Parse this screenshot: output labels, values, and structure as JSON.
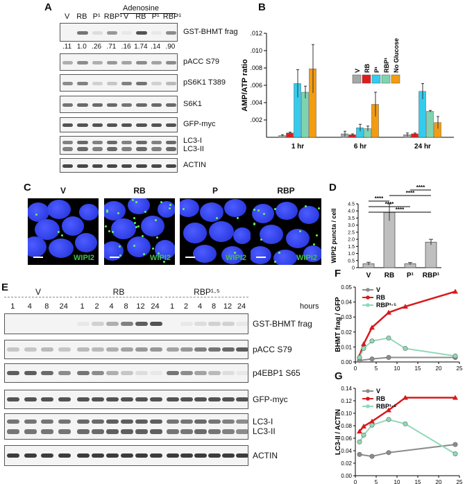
{
  "panels": {
    "A": "A",
    "B": "B",
    "C": "C",
    "D": "D",
    "E": "E",
    "F": "F",
    "G": "G"
  },
  "panelA": {
    "treatment_label": "Adenosine",
    "lanes": [
      "V",
      "RB",
      "P¹",
      "RBP¹",
      "V",
      "RB",
      "P¹",
      "RBP¹"
    ],
    "quant": [
      ".11",
      "1.0",
      ".26",
      ".71",
      ".16",
      "1.74",
      ".14",
      ".90"
    ],
    "blots": [
      {
        "label": "GST-BHMT frag",
        "intensity": [
          0.05,
          0.6,
          0.15,
          0.45,
          0.1,
          0.75,
          0.1,
          0.5
        ]
      },
      {
        "label": "pACC S79",
        "intensity": [
          0.35,
          0.5,
          0.35,
          0.45,
          0.4,
          0.5,
          0.4,
          0.5
        ]
      },
      {
        "label": "pS6K1 T389",
        "intensity": [
          0.5,
          0.55,
          0.2,
          0.25,
          0.55,
          0.6,
          0.2,
          0.3
        ]
      },
      {
        "label": "S6K1",
        "intensity": [
          0.6,
          0.65,
          0.65,
          0.65,
          0.6,
          0.65,
          0.65,
          0.65
        ]
      },
      {
        "label": "GFP-myc",
        "intensity": [
          0.75,
          0.75,
          0.75,
          0.75,
          0.75,
          0.75,
          0.75,
          0.75
        ]
      },
      {
        "label": "LC3-I\nLC3-II",
        "intensity": [
          0.55,
          0.65,
          0.55,
          0.65,
          0.55,
          0.65,
          0.55,
          0.65
        ]
      },
      {
        "label": "ACTIN",
        "intensity": [
          0.8,
          0.8,
          0.8,
          0.8,
          0.8,
          0.8,
          0.8,
          0.8
        ]
      }
    ]
  },
  "panelC": {
    "titles": [
      "V",
      "RB",
      "P",
      "RBP"
    ],
    "stain": "WIPI2"
  },
  "panelE": {
    "groups": [
      "V",
      "RB",
      "RBP¹·⁵"
    ],
    "timepoints": [
      "1",
      "4",
      "8",
      "24",
      "1",
      "2",
      "4",
      "8",
      "12",
      "24",
      "1",
      "2",
      "4",
      "8",
      "12",
      "24"
    ],
    "units": "hours",
    "blots": [
      {
        "label": "GST-BHMT frag"
      },
      {
        "label": "pACC S79"
      },
      {
        "label": "p4EBP1 S65"
      },
      {
        "label": "GFP-myc"
      },
      {
        "label": "LC3-I\nLC3-II"
      },
      {
        "label": "ACTIN"
      }
    ]
  },
  "chart_data": [
    {
      "panel": "B",
      "type": "bar",
      "ylabel": "AMP/ATP ratio",
      "categories": [
        "1 hr",
        "6 hr",
        "24 hr"
      ],
      "ylim": [
        0,
        0.012
      ],
      "yticks": [
        ".002",
        ".004",
        ".006",
        ".008",
        ".010",
        ".012"
      ],
      "series": [
        {
          "name": "V",
          "color": "#a6a6a6",
          "values": [
            0.0002,
            0.0004,
            0.0003
          ],
          "err": [
            0.0001,
            0.0003,
            0.0002
          ]
        },
        {
          "name": "RB",
          "color": "#e31a1c",
          "values": [
            0.0005,
            0.0003,
            0.0004
          ],
          "err": [
            0.0001,
            0.0001,
            0.0001
          ]
        },
        {
          "name": "P¹",
          "color": "#33ccee",
          "values": [
            0.0062,
            0.0011,
            0.0053
          ],
          "err": [
            0.0016,
            0.0004,
            0.0009
          ]
        },
        {
          "name": "RBP¹",
          "color": "#7fd4b0",
          "values": [
            0.0052,
            0.001,
            0.003
          ],
          "err": [
            0.0007,
            0.0003,
            0.0001
          ]
        },
        {
          "name": "No Glucose",
          "color": "#f39c12",
          "values": [
            0.0079,
            0.0038,
            0.0017
          ],
          "err": [
            0.0028,
            0.0014,
            0.0007
          ]
        }
      ]
    },
    {
      "panel": "D",
      "type": "bar",
      "ylabel": "WIPI2 puncta / cell",
      "categories": [
        "V",
        "RB",
        "P¹",
        "RBP¹"
      ],
      "ylim": [
        0,
        4.5
      ],
      "yticks": [
        "0",
        "0.5",
        "1.0",
        "1.5",
        "2.0",
        "2.5",
        "3.0",
        "3.5",
        "4.0",
        "4.5"
      ],
      "values": [
        0.28,
        3.9,
        0.28,
        1.8
      ],
      "err": [
        0.1,
        0.6,
        0.08,
        0.2
      ],
      "significance": "****"
    },
    {
      "panel": "F",
      "type": "line",
      "ylabel": "BHMT frag / GFP",
      "ylim": [
        0,
        0.05
      ],
      "xlim": [
        0,
        25
      ],
      "yticks": [
        "0.00",
        "0.01",
        "0.02",
        "0.03",
        "0.04",
        "0.05"
      ],
      "xticks": [
        "0",
        "5",
        "10",
        "15",
        "20",
        "25"
      ],
      "series": [
        {
          "name": "V",
          "color": "#8c8c8c",
          "x": [
            1,
            4,
            8,
            24
          ],
          "y": [
            0.001,
            0.002,
            0.003,
            0.003
          ]
        },
        {
          "name": "RB",
          "color": "#d7191c",
          "x": [
            1,
            2,
            4,
            8,
            12,
            24
          ],
          "y": [
            0.004,
            0.012,
            0.023,
            0.033,
            0.037,
            0.047
          ]
        },
        {
          "name": "RBP¹·⁵",
          "color": "#8fd9b6",
          "x": [
            1,
            2,
            4,
            8,
            12,
            24
          ],
          "y": [
            0.003,
            0.009,
            0.014,
            0.016,
            0.009,
            0.004
          ]
        }
      ]
    },
    {
      "panel": "G",
      "type": "line",
      "ylabel": "LC3-II / ACTIN",
      "ylim": [
        0,
        0.14
      ],
      "xlim": [
        0,
        25
      ],
      "yticks": [
        "0.00",
        "0.02",
        "0.04",
        "0.06",
        "0.08",
        "0.10",
        "0.12",
        "0.14"
      ],
      "xticks": [
        "0",
        "5",
        "10",
        "15",
        "20",
        "25"
      ],
      "series": [
        {
          "name": "V",
          "color": "#8c8c8c",
          "x": [
            1,
            4,
            8,
            24
          ],
          "y": [
            0.034,
            0.031,
            0.037,
            0.05
          ]
        },
        {
          "name": "RB",
          "color": "#d7191c",
          "x": [
            1,
            2,
            4,
            8,
            12,
            24
          ],
          "y": [
            0.071,
            0.079,
            0.087,
            0.105,
            0.125,
            0.125
          ]
        },
        {
          "name": "RBP¹·⁵",
          "color": "#8fd9b6",
          "x": [
            1,
            2,
            4,
            8,
            12,
            24
          ],
          "y": [
            0.054,
            0.065,
            0.081,
            0.09,
            0.083,
            0.035
          ]
        }
      ]
    }
  ]
}
